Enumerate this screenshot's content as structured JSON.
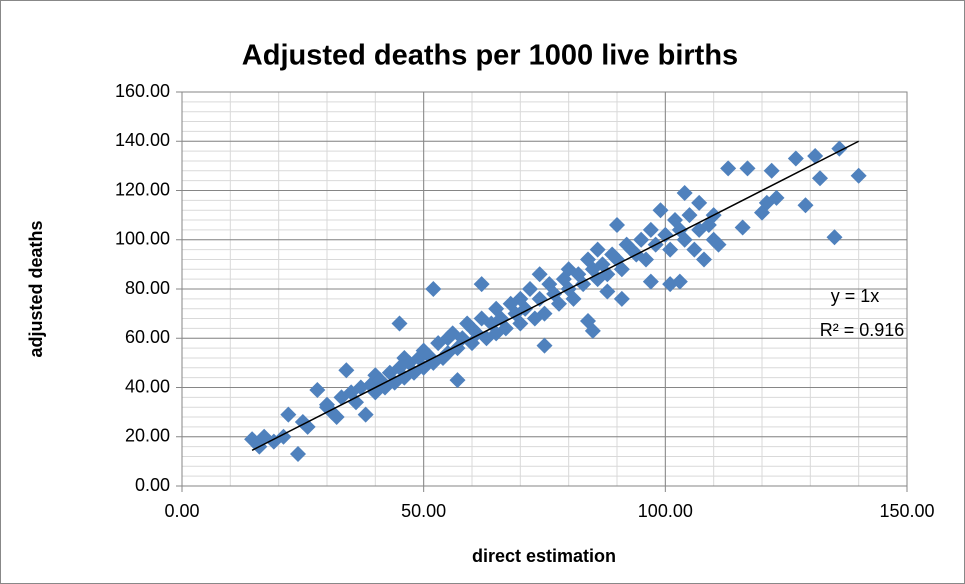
{
  "chart_data": {
    "type": "scatter",
    "title": "Adjusted deaths per 1000 live births",
    "x_label": "direct estimation",
    "y_label": "adjusted deaths",
    "color": "#4f81bd",
    "xlim": [
      0,
      150
    ],
    "ylim": [
      0,
      160
    ],
    "xticks": [
      {
        "value": 0,
        "label": "0.00"
      },
      {
        "value": 50,
        "label": "50.00"
      },
      {
        "value": 100,
        "label": "100.00"
      },
      {
        "value": 150,
        "label": "150.00"
      }
    ],
    "yticks": [
      {
        "value": 0,
        "label": "0.00"
      },
      {
        "value": 20,
        "label": "20.00"
      },
      {
        "value": 40,
        "label": "40.00"
      },
      {
        "value": 60,
        "label": "60.00"
      },
      {
        "value": 80,
        "label": "80.00"
      },
      {
        "value": 100,
        "label": "100.00"
      },
      {
        "value": 120,
        "label": "120.00"
      },
      {
        "value": 140,
        "label": "140.00"
      },
      {
        "value": 160,
        "label": "160.00"
      }
    ],
    "grid": true,
    "minor_grid": {
      "x": 10,
      "y": 4
    },
    "trendline": {
      "slope": 1,
      "x_range": [
        14.5,
        140
      ],
      "equation": "y = 1x",
      "r_squared": "R² = 0.916"
    },
    "x": [
      14.5,
      16,
      17,
      19,
      21,
      22,
      24,
      25,
      26,
      28,
      30,
      32,
      34,
      38,
      40,
      45,
      52,
      57,
      62,
      75,
      84,
      85,
      88,
      91,
      90,
      97,
      101,
      103,
      104,
      107,
      110,
      113,
      116,
      117,
      120,
      121,
      122,
      123,
      127,
      129,
      131,
      132,
      135,
      136,
      140,
      30,
      31,
      33,
      35,
      36,
      37,
      39,
      40,
      41,
      42,
      43,
      44,
      45,
      46,
      46,
      47,
      48,
      49,
      50,
      50,
      51,
      52,
      53,
      54,
      55,
      55,
      56,
      57,
      58,
      59,
      60,
      60,
      61,
      62,
      63,
      64,
      65,
      65,
      66,
      67,
      68,
      69,
      70,
      70,
      71,
      72,
      73,
      74,
      74,
      75,
      76,
      77,
      78,
      79,
      80,
      80,
      81,
      82,
      83,
      84,
      85,
      86,
      86,
      87,
      88,
      89,
      90,
      91,
      92,
      93,
      94,
      95,
      96,
      97,
      98,
      99,
      100,
      101,
      102,
      103,
      104,
      105,
      106,
      107,
      108,
      109,
      110,
      111
    ],
    "values": [
      19,
      16,
      20,
      18,
      20,
      29,
      13,
      26,
      24,
      39,
      32,
      28,
      47,
      29,
      45,
      66,
      80,
      43,
      82,
      57,
      67,
      63,
      79,
      76,
      106,
      83,
      82,
      83,
      119,
      115,
      110,
      129,
      105,
      129,
      111,
      115,
      128,
      117,
      133,
      114,
      134,
      125,
      101,
      137,
      126,
      33,
      30,
      36,
      38,
      34,
      40,
      41,
      38,
      43,
      40,
      46,
      42,
      48,
      44,
      52,
      50,
      46,
      52,
      48,
      55,
      53,
      50,
      58,
      52,
      60,
      54,
      62,
      56,
      60,
      66,
      58,
      64,
      62,
      68,
      60,
      66,
      72,
      62,
      68,
      64,
      74,
      70,
      66,
      76,
      72,
      80,
      68,
      86,
      76,
      70,
      82,
      78,
      74,
      84,
      80,
      88,
      76,
      86,
      82,
      92,
      88,
      96,
      84,
      90,
      86,
      94,
      92,
      88,
      98,
      96,
      94,
      100,
      92,
      104,
      98,
      112,
      102,
      96,
      108,
      104,
      100,
      110,
      96,
      104,
      92,
      106,
      100,
      98
    ]
  }
}
